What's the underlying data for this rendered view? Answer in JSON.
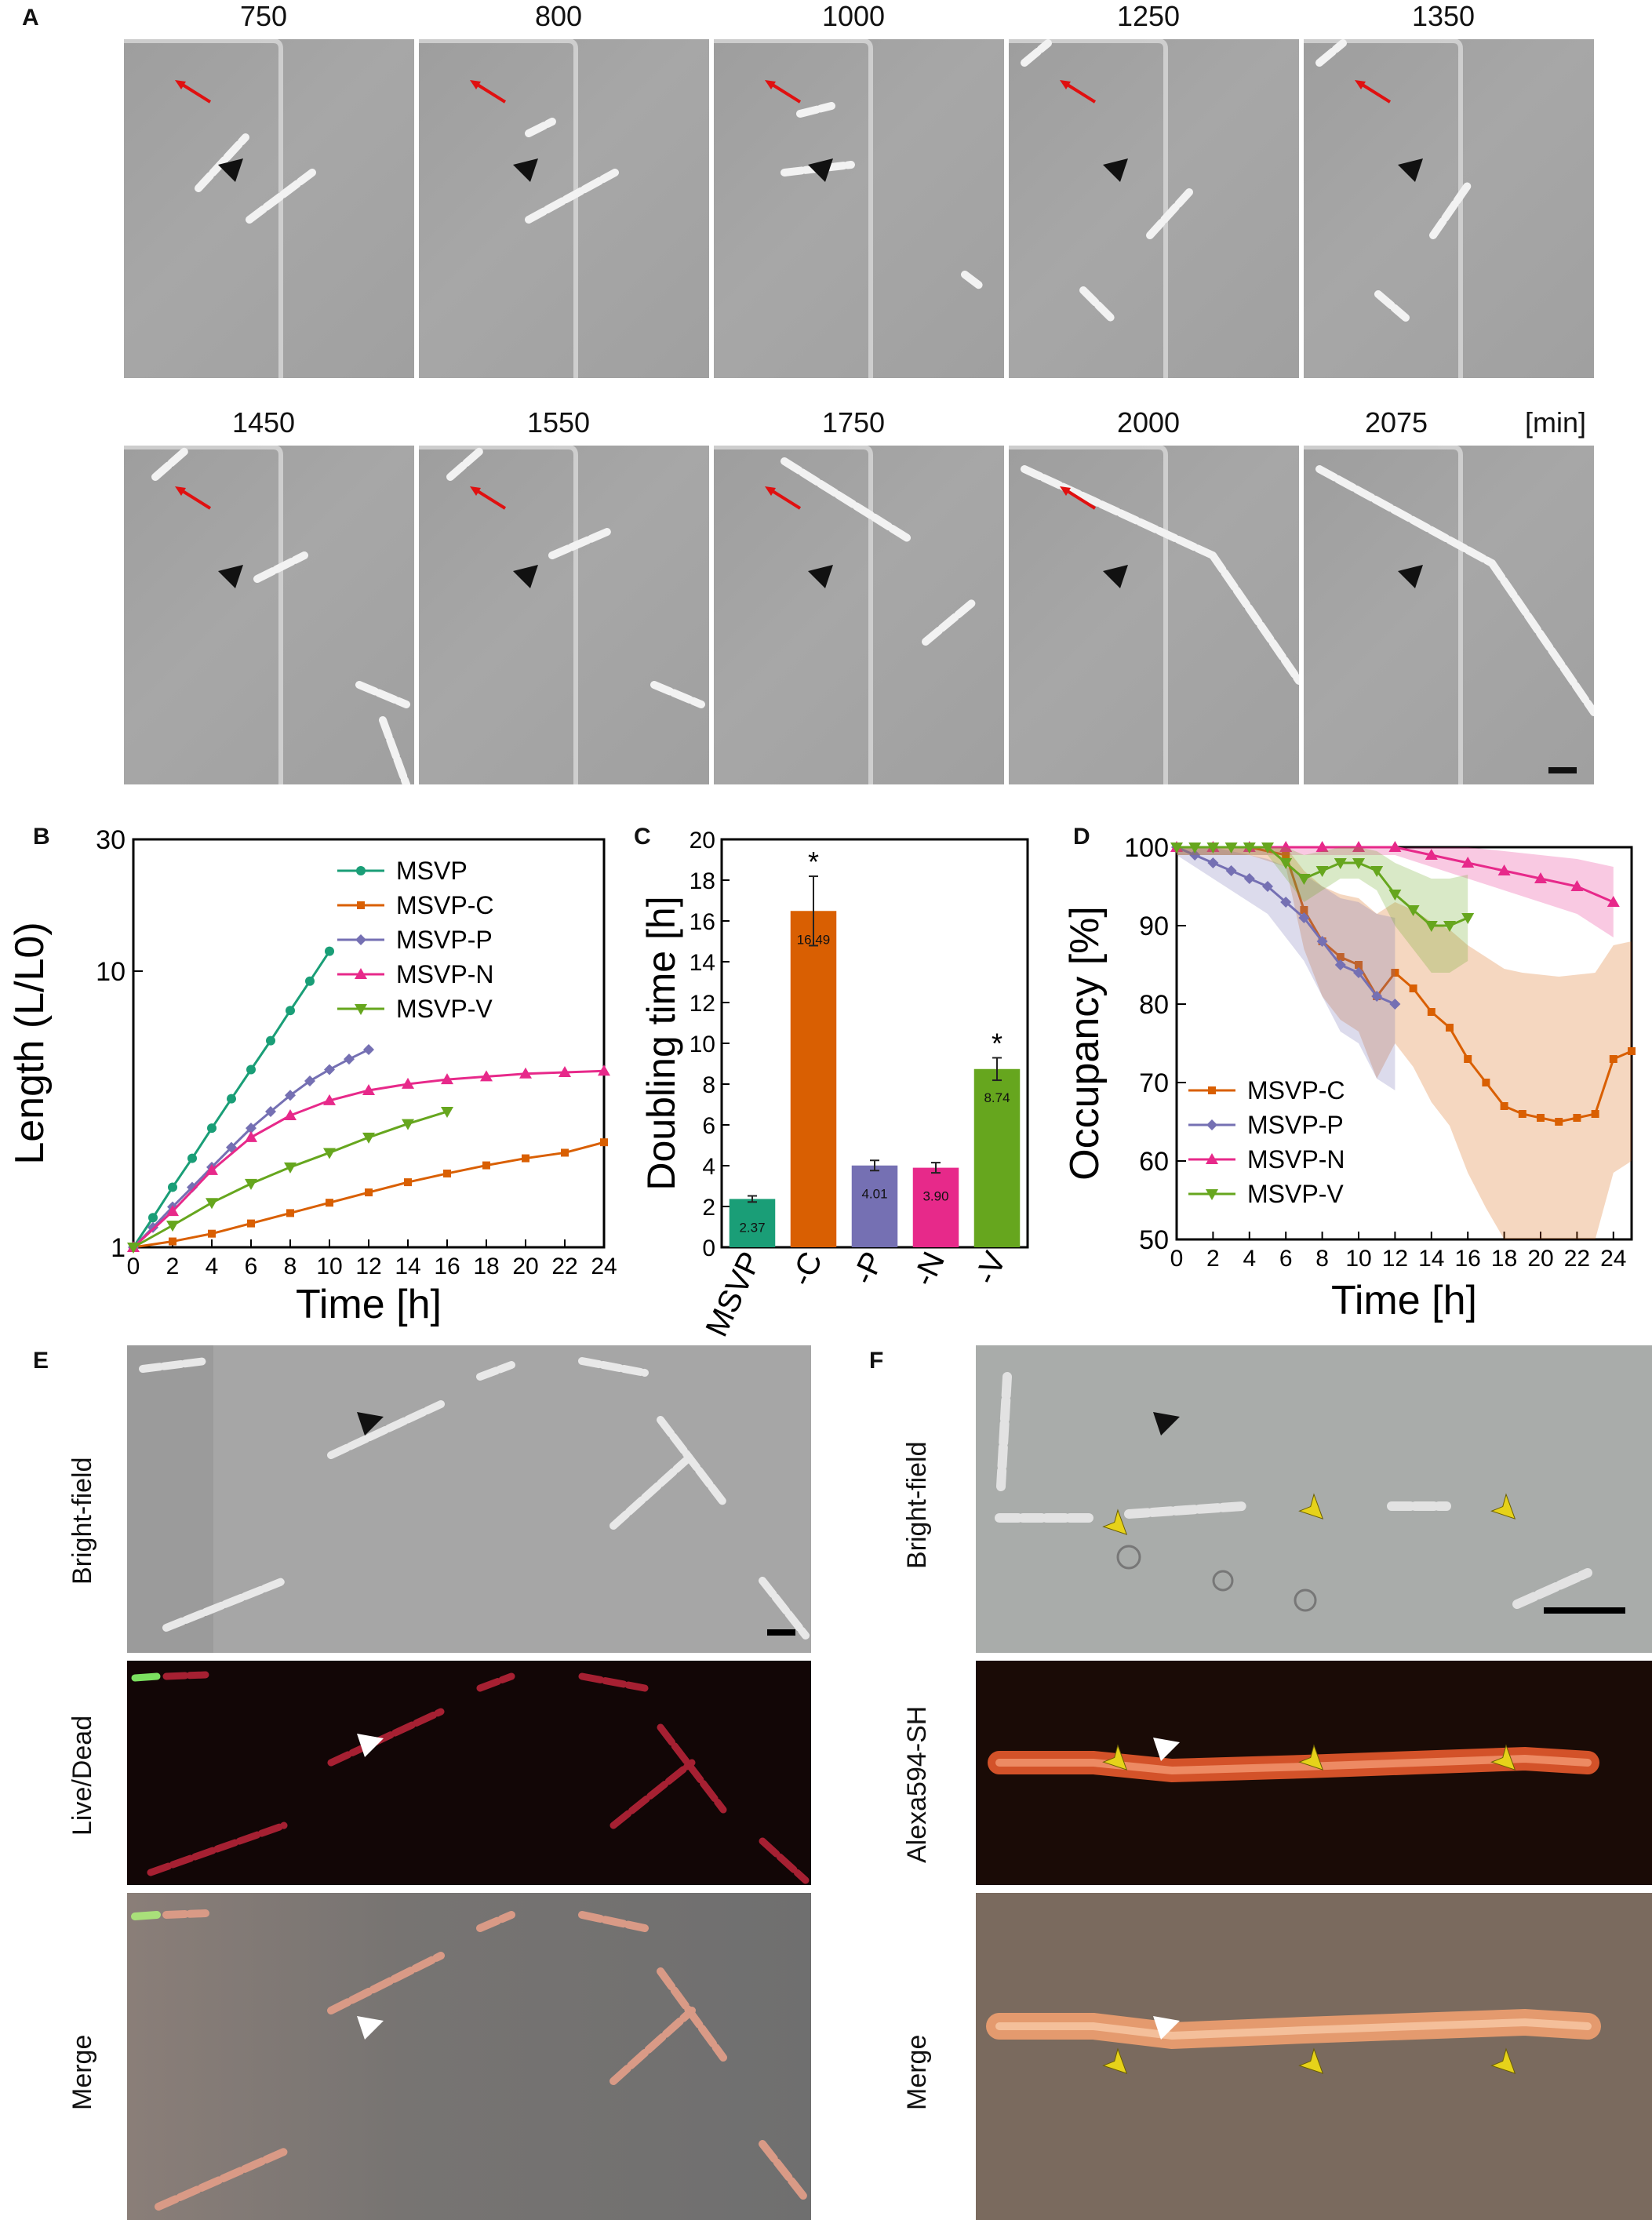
{
  "panelA": {
    "letter": "A",
    "row1_times": [
      "750",
      "800",
      "1000",
      "1250",
      "1350"
    ],
    "row2_times": [
      "1450",
      "1550",
      "1750",
      "2000",
      "2075"
    ],
    "unit": "[min]"
  },
  "panelB": {
    "letter": "B"
  },
  "panelC": {
    "letter": "C"
  },
  "panelD": {
    "letter": "D"
  },
  "panelE": {
    "letter": "E",
    "rows": [
      "Bright-field",
      "Live/Dead",
      "Merge"
    ]
  },
  "panelF": {
    "letter": "F",
    "rows": [
      "Bright-field",
      "Alexa594-SH",
      "Merge"
    ]
  },
  "colors": {
    "MSVP": "#1a9e77",
    "MSVP-C": "#d95f02",
    "MSVP-P": "#7570b3",
    "MSVP-N": "#e7298a",
    "MSVP-V": "#66a61e"
  },
  "chart_data": [
    {
      "panel": "B",
      "type": "line",
      "xlabel": "Time [h]",
      "ylabel": "Length (L/L0)",
      "yscale": "log",
      "xlim": [
        0,
        24
      ],
      "ylim": [
        1,
        30
      ],
      "xticks": [
        "0",
        "2",
        "4",
        "6",
        "8",
        "10",
        "12",
        "14",
        "16",
        "18",
        "20",
        "22",
        "24"
      ],
      "yticks": [
        "1",
        "10",
        "30"
      ],
      "legend": "top-right",
      "series": [
        {
          "name": "MSVP",
          "x": [
            0,
            1,
            2,
            3,
            4,
            5,
            6,
            7,
            8,
            9,
            10
          ],
          "y": [
            1.0,
            1.28,
            1.65,
            2.1,
            2.7,
            3.45,
            4.4,
            5.6,
            7.2,
            9.2,
            11.8
          ]
        },
        {
          "name": "MSVP-C",
          "x": [
            0,
            2,
            4,
            6,
            8,
            10,
            12,
            14,
            16,
            18,
            20,
            22,
            24
          ],
          "y": [
            1.0,
            1.05,
            1.12,
            1.22,
            1.33,
            1.45,
            1.58,
            1.72,
            1.85,
            1.98,
            2.1,
            2.2,
            2.4
          ]
        },
        {
          "name": "MSVP-P",
          "x": [
            0,
            1,
            2,
            3,
            4,
            5,
            6,
            7,
            8,
            9,
            10,
            11,
            12
          ],
          "y": [
            1.0,
            1.18,
            1.4,
            1.65,
            1.95,
            2.3,
            2.7,
            3.1,
            3.55,
            4.0,
            4.4,
            4.8,
            5.2
          ]
        },
        {
          "name": "MSVP-N",
          "x": [
            0,
            2,
            4,
            6,
            8,
            10,
            12,
            14,
            16,
            18,
            20,
            22,
            24
          ],
          "y": [
            1.0,
            1.35,
            1.9,
            2.5,
            3.0,
            3.4,
            3.7,
            3.9,
            4.05,
            4.15,
            4.25,
            4.3,
            4.35
          ]
        },
        {
          "name": "MSVP-V",
          "x": [
            0,
            2,
            4,
            6,
            8,
            10,
            12,
            14,
            16
          ],
          "y": [
            1.0,
            1.2,
            1.45,
            1.7,
            1.95,
            2.2,
            2.5,
            2.8,
            3.1
          ]
        }
      ]
    },
    {
      "panel": "C",
      "type": "bar",
      "ylabel": "Doubling time [h]",
      "categories": [
        "MSVP",
        "-C",
        "-P",
        "-N",
        "-V"
      ],
      "values": [
        2.37,
        16.49,
        4.01,
        3.9,
        8.74
      ],
      "value_labels": [
        "2.37",
        "16.49",
        "4.01",
        "3.90",
        "8.74"
      ],
      "errors": [
        0.15,
        1.7,
        0.25,
        0.25,
        0.55
      ],
      "significance": [
        "",
        "*",
        "",
        "",
        "*"
      ],
      "ylim": [
        0,
        20
      ],
      "yticks": [
        "0",
        "2",
        "4",
        "6",
        "8",
        "10",
        "12",
        "14",
        "16",
        "18",
        "20"
      ]
    },
    {
      "panel": "D",
      "type": "line",
      "xlabel": "Time [h]",
      "ylabel": "Occupancy [%]",
      "xlim": [
        0,
        25
      ],
      "ylim": [
        50,
        100
      ],
      "xticks": [
        "0",
        "2",
        "4",
        "6",
        "8",
        "10",
        "12",
        "14",
        "16",
        "18",
        "20",
        "22",
        "24"
      ],
      "yticks": [
        "50",
        "60",
        "70",
        "80",
        "90",
        "100"
      ],
      "legend": "lower-left",
      "series": [
        {
          "name": "MSVP-C",
          "x": [
            0,
            2,
            4,
            6,
            7,
            8,
            9,
            10,
            11,
            12,
            13,
            14,
            15,
            16,
            17,
            18,
            19,
            20,
            21,
            22,
            23,
            24,
            25
          ],
          "y": [
            100,
            100,
            100,
            99,
            92,
            88,
            86,
            85,
            81,
            84,
            82,
            79,
            77,
            73,
            70,
            67,
            66,
            65.5,
            65,
            65.5,
            66,
            73,
            74
          ]
        },
        {
          "name": "MSVP-P",
          "x": [
            0,
            1,
            2,
            3,
            4,
            5,
            6,
            7,
            8,
            9,
            10,
            11,
            12
          ],
          "y": [
            100,
            99,
            98,
            97,
            96,
            95,
            93,
            91,
            88,
            85,
            84,
            81,
            80
          ]
        },
        {
          "name": "MSVP-N",
          "x": [
            0,
            2,
            4,
            6,
            8,
            10,
            12,
            14,
            16,
            18,
            20,
            22,
            24
          ],
          "y": [
            100,
            100,
            100,
            100,
            100,
            100,
            100,
            99,
            98,
            97,
            96,
            95,
            93
          ]
        },
        {
          "name": "MSVP-V",
          "x": [
            0,
            1,
            2,
            3,
            4,
            5,
            6,
            7,
            8,
            9,
            10,
            11,
            12,
            13,
            14,
            15,
            16
          ],
          "y": [
            100,
            100,
            100,
            100,
            100,
            100,
            98,
            96,
            97,
            98,
            98,
            97,
            94,
            92,
            90,
            90,
            91
          ]
        }
      ]
    }
  ]
}
